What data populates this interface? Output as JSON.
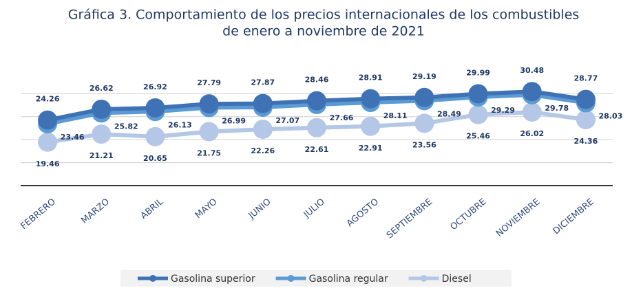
{
  "chart_data": {
    "type": "line",
    "title": [
      "Gráfica 3. Comportamiento de los precios internacionales de los combustibles",
      "de enero a noviembre de 2021"
    ],
    "categories": [
      "FEBRERO",
      "MARZO",
      "ABRIL",
      "MAYO",
      "JUNIO",
      "JULIO",
      "AGOSTO",
      "SEPTIEMBRE",
      "OCTUBRE",
      "NOVIEMBRE",
      "DICIEMBRE"
    ],
    "series": [
      {
        "name": "Gasolina superior",
        "color": "#3f72b5",
        "values": [
          24.26,
          26.62,
          26.92,
          27.79,
          27.87,
          28.46,
          28.91,
          29.19,
          29.99,
          30.48,
          28.77
        ]
      },
      {
        "name": "Gasolina regular",
        "color": "#5b9bd5",
        "values": [
          23.46,
          25.82,
          26.13,
          26.99,
          27.07,
          27.66,
          28.11,
          28.49,
          29.29,
          29.78,
          28.03
        ]
      },
      {
        "name": "Diesel",
        "color": "#b4c7e7",
        "values": [
          19.46,
          21.21,
          20.65,
          21.75,
          22.26,
          22.61,
          22.91,
          23.56,
          25.46,
          26.02,
          24.36
        ]
      }
    ],
    "ylim": [
      10,
      35
    ],
    "yticks": [
      10,
      15,
      20,
      25,
      30
    ],
    "grid": true,
    "legend": "bottom"
  }
}
